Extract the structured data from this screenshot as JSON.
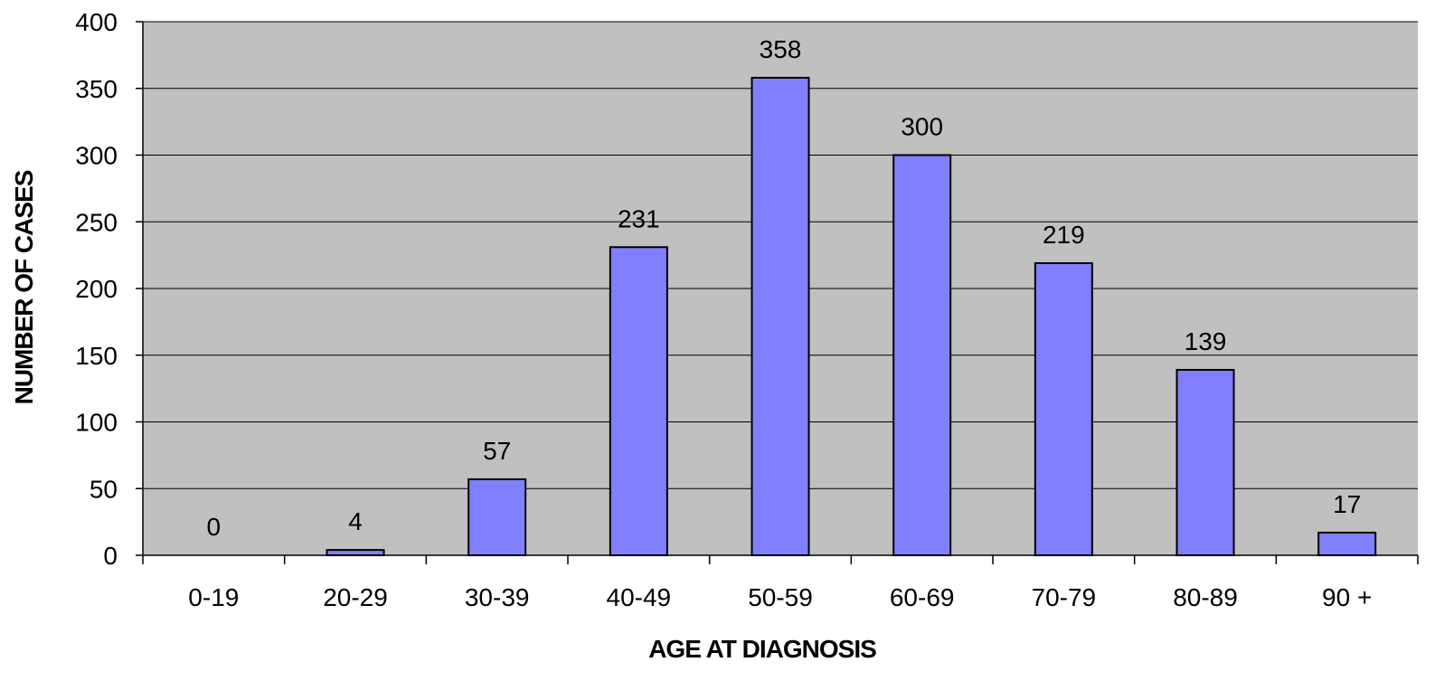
{
  "chart_data": {
    "type": "bar",
    "title": "",
    "xlabel": "AGE AT DIAGNOSIS",
    "ylabel": "NUMBER OF CASES",
    "categories": [
      "0-19",
      "20-29",
      "30-39",
      "40-49",
      "50-59",
      "60-69",
      "70-79",
      "80-89",
      "90 +"
    ],
    "series": [
      {
        "values": [
          0,
          4,
          57,
          231,
          358,
          300,
          219,
          139,
          17
        ]
      }
    ],
    "data_labels": [
      "0",
      "4",
      "57",
      "231",
      "358",
      "300",
      "219",
      "139",
      "17"
    ],
    "ylim": [
      0,
      400
    ],
    "yticks": [
      0,
      50,
      100,
      150,
      200,
      250,
      300,
      350,
      400
    ],
    "ytick_labels": [
      "0",
      "50",
      "100",
      "150",
      "200",
      "250",
      "300",
      "350",
      "400"
    ],
    "grid": true,
    "legend": "none"
  },
  "colors": {
    "plot_background": "#c0c0c0",
    "bar_fill": "#8080ff",
    "bar_stroke": "#000000",
    "gridline": "#000000"
  }
}
